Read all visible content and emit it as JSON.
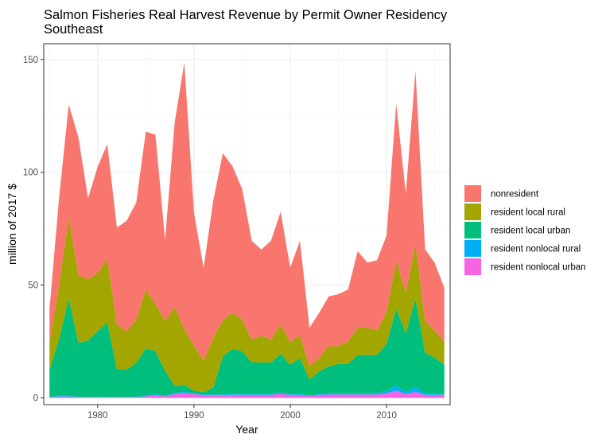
{
  "chart_data": {
    "type": "area",
    "stacked": true,
    "title": "Salmon Fisheries Real Harvest Revenue by Permit Owner Residency",
    "subtitle": "Southeast",
    "xlabel": "Year",
    "ylabel": "million of 2017 $",
    "xlim": [
      1974.4,
      2016.6
    ],
    "ylim": [
      -3,
      157
    ],
    "x_ticks": [
      1980,
      1990,
      2000,
      2010
    ],
    "x_tick_labels": [
      "1980",
      "1990",
      "2000",
      "2010"
    ],
    "y_ticks": [
      0,
      50,
      100,
      150
    ],
    "y_tick_labels": [
      "0",
      "50",
      "100",
      "150"
    ],
    "grid": true,
    "legend_position": "right",
    "x": [
      1975,
      1976,
      1977,
      1978,
      1979,
      1980,
      1981,
      1982,
      1983,
      1984,
      1985,
      1986,
      1987,
      1988,
      1989,
      1990,
      1991,
      1992,
      1993,
      1994,
      1995,
      1996,
      1997,
      1998,
      1999,
      2000,
      2001,
      2002,
      2003,
      2004,
      2005,
      2006,
      2007,
      2008,
      2009,
      2010,
      2011,
      2012,
      2013,
      2014,
      2015,
      2016
    ],
    "series": [
      {
        "name": "resident nonlocal urban",
        "color": "#F564E3",
        "values": [
          0.3,
          0.6,
          0.6,
          0.3,
          0.3,
          0.3,
          0.3,
          0.3,
          0.3,
          0.3,
          0.7,
          1.2,
          0.7,
          1.7,
          2.2,
          1.7,
          1.2,
          1.2,
          1.2,
          1.3,
          1.3,
          1.3,
          1.3,
          1.3,
          1.8,
          1.3,
          1.3,
          0.8,
          1.3,
          1.5,
          1.5,
          1.5,
          1.5,
          1.5,
          1.5,
          2.0,
          3.2,
          1.7,
          2.7,
          1.3,
          1.3,
          1.3
        ]
      },
      {
        "name": "resident nonlocal rural",
        "color": "#00B0F6",
        "values": [
          0.2,
          0.4,
          0.4,
          0.2,
          0.2,
          0.2,
          0.2,
          0.2,
          0.2,
          0.2,
          0.3,
          0.5,
          0.3,
          0.5,
          0.5,
          0.5,
          0.3,
          0.3,
          0.3,
          0.4,
          0.4,
          0.4,
          0.4,
          0.4,
          0.7,
          0.4,
          0.4,
          0.3,
          0.4,
          0.5,
          0.5,
          0.5,
          0.5,
          0.5,
          0.5,
          1.0,
          2.3,
          0.8,
          2.3,
          0.7,
          0.5,
          0.5
        ]
      },
      {
        "name": "resident local urban",
        "color": "#00BF7D",
        "values": [
          12,
          25,
          43,
          24,
          25,
          29,
          33,
          12,
          12,
          15,
          21,
          19,
          11,
          3,
          3,
          1,
          1,
          3,
          17,
          20,
          19,
          14,
          14,
          14,
          17,
          13,
          16,
          7,
          10,
          12,
          13,
          13,
          17,
          17,
          17,
          21,
          34,
          26,
          39,
          18,
          16,
          13
        ]
      },
      {
        "name": "resident local rural",
        "color": "#A3A500",
        "values": [
          12,
          24,
          36,
          30,
          27,
          26,
          28,
          20,
          17,
          19,
          26,
          21,
          22,
          35,
          25,
          20,
          14,
          22,
          16,
          16,
          14,
          10,
          12,
          10,
          13,
          10,
          10,
          6,
          6,
          9,
          8,
          10,
          12,
          12,
          11,
          14,
          21,
          18,
          24,
          14,
          12,
          10
        ]
      },
      {
        "name": "nonresident",
        "color": "#F8766D",
        "values": [
          15,
          39,
          50,
          61,
          36,
          47,
          51,
          43,
          49,
          52,
          70,
          75,
          36,
          82,
          118,
          59,
          41,
          61,
          74,
          65,
          58,
          44,
          38,
          44,
          50,
          33,
          42,
          17,
          20,
          22,
          23,
          23,
          34,
          29,
          31,
          34,
          70,
          44,
          77,
          32,
          30,
          24
        ]
      }
    ]
  }
}
